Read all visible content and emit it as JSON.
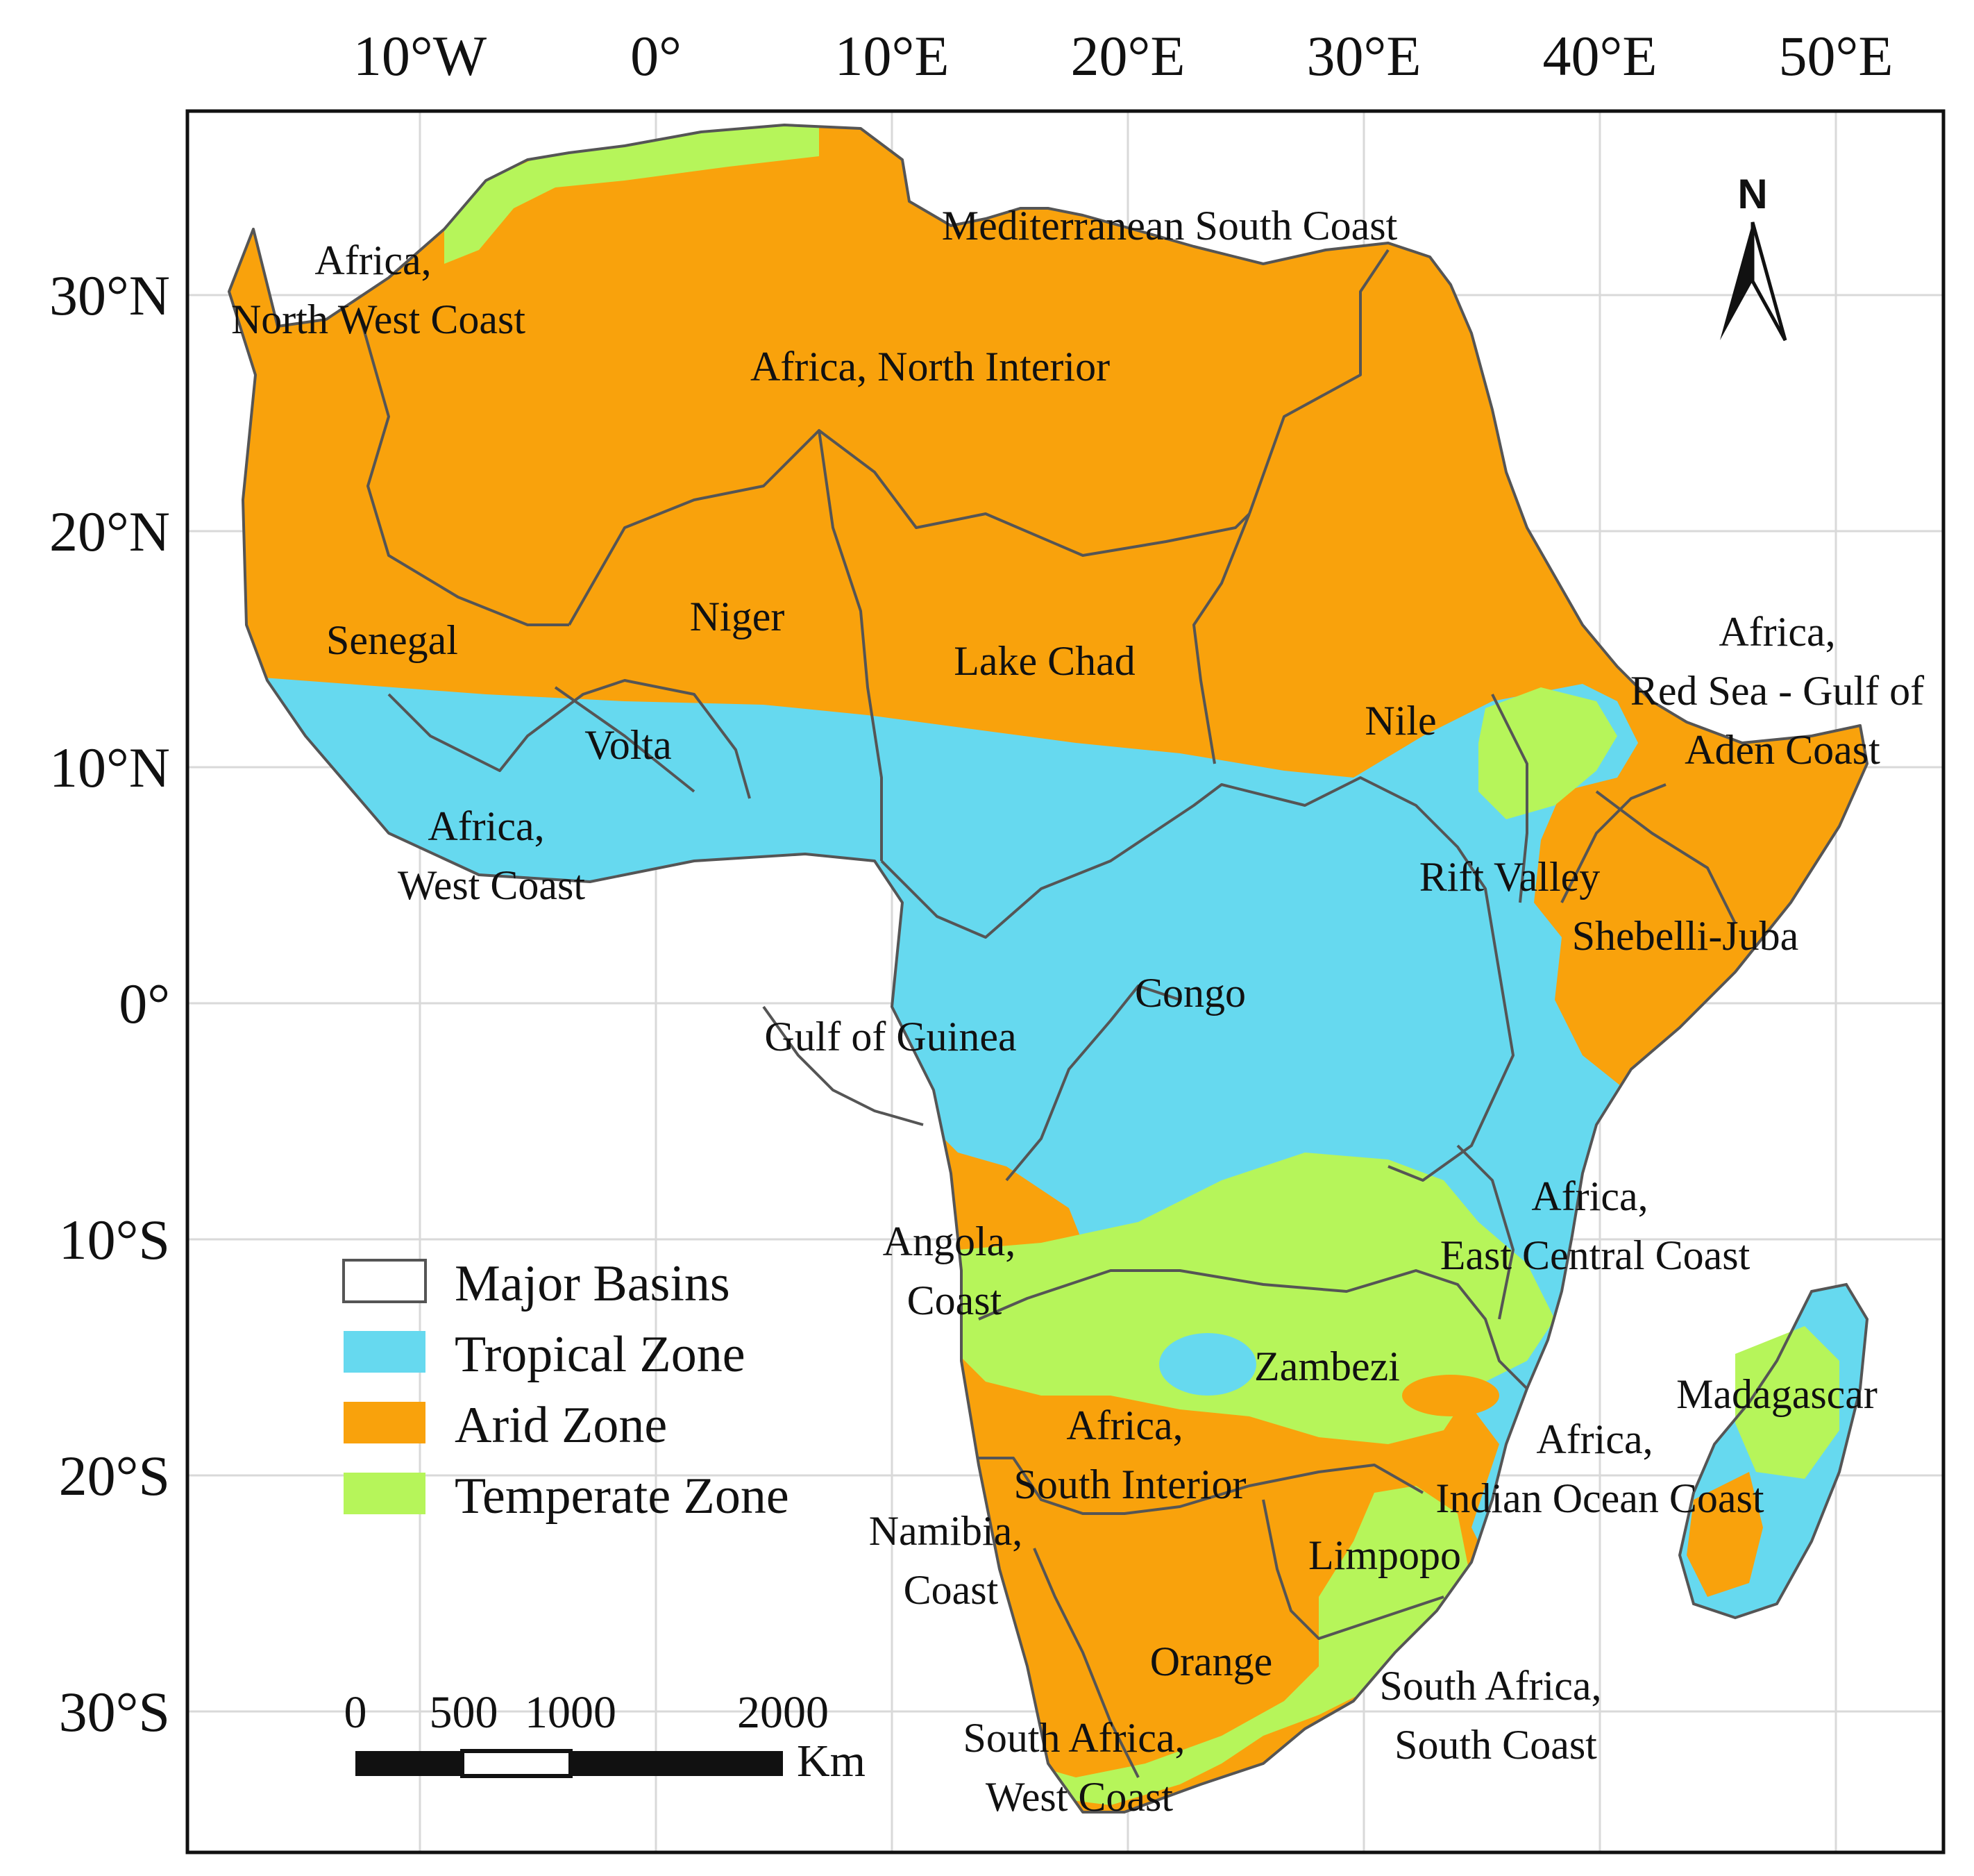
{
  "map": {
    "axes": {
      "lon_ticks": [
        "10°W",
        "0°",
        "10°E",
        "20°E",
        "30°E",
        "40°E",
        "50°E"
      ],
      "lat_ticks": [
        "30°N",
        "20°N",
        "10°N",
        "0°",
        "10°S",
        "20°S",
        "30°S"
      ]
    },
    "north_arrow": {
      "label": "N"
    },
    "basins": [
      {
        "key": "nw_coast",
        "lines": [
          "Africa,",
          "North West Coast"
        ]
      },
      {
        "key": "med",
        "lines": [
          "Mediterranean South Coast"
        ]
      },
      {
        "key": "north_interior",
        "lines": [
          "Africa, North Interior"
        ]
      },
      {
        "key": "senegal",
        "lines": [
          "Senegal"
        ]
      },
      {
        "key": "niger",
        "lines": [
          "Niger"
        ]
      },
      {
        "key": "lake_chad",
        "lines": [
          "Lake Chad"
        ]
      },
      {
        "key": "nile",
        "lines": [
          "Nile"
        ]
      },
      {
        "key": "red_sea",
        "lines": [
          "Africa,",
          "Red Sea - Gulf of",
          "Aden Coast"
        ]
      },
      {
        "key": "volta",
        "lines": [
          "Volta"
        ]
      },
      {
        "key": "west_coast",
        "lines": [
          "Africa,",
          "West Coast"
        ]
      },
      {
        "key": "rift",
        "lines": [
          "Rift Valley"
        ]
      },
      {
        "key": "shebelli",
        "lines": [
          "Shebelli-Juba"
        ]
      },
      {
        "key": "congo",
        "lines": [
          "Congo"
        ]
      },
      {
        "key": "guinea",
        "lines": [
          "Gulf of Guinea"
        ]
      },
      {
        "key": "east_central",
        "lines": [
          "Africa,",
          "East Central Coast"
        ]
      },
      {
        "key": "angola",
        "lines": [
          "Angola,",
          "Coast"
        ]
      },
      {
        "key": "zambezi",
        "lines": [
          "Zambezi"
        ]
      },
      {
        "key": "madagascar",
        "lines": [
          "Madagascar"
        ]
      },
      {
        "key": "south_interior",
        "lines": [
          "Africa,",
          "South Interior"
        ]
      },
      {
        "key": "indian_ocean",
        "lines": [
          "Africa,",
          "Indian Ocean Coast"
        ]
      },
      {
        "key": "namibia",
        "lines": [
          "Namibia,",
          "Coast"
        ]
      },
      {
        "key": "limpopo",
        "lines": [
          "Limpopo"
        ]
      },
      {
        "key": "orange",
        "lines": [
          "Orange"
        ]
      },
      {
        "key": "sa_south",
        "lines": [
          "South Africa,",
          "South Coast"
        ]
      },
      {
        "key": "sa_west",
        "lines": [
          "South Africa,",
          "West Coast"
        ]
      }
    ],
    "legend": [
      {
        "label": "Major Basins",
        "color": "#ffffff",
        "outline": "#555555"
      },
      {
        "label": "Tropical Zone",
        "color": "#66d9ef",
        "outline": "#66d9ef"
      },
      {
        "label": "Arid Zone",
        "color": "#f9a20c",
        "outline": "#f9a20c"
      },
      {
        "label": "Temperate Zone",
        "color": "#b6f55a",
        "outline": "#b6f55a"
      }
    ],
    "scale_bar": {
      "ticks": [
        "0",
        "500",
        "1000",
        "2000"
      ],
      "unit": "Km"
    },
    "colors": {
      "tropical": "#66d9ef",
      "arid": "#f9a20c",
      "temperate": "#b6f55a",
      "basin_lines": "#555555",
      "grid": "#d9d9d9",
      "frame": "#111111"
    }
  }
}
